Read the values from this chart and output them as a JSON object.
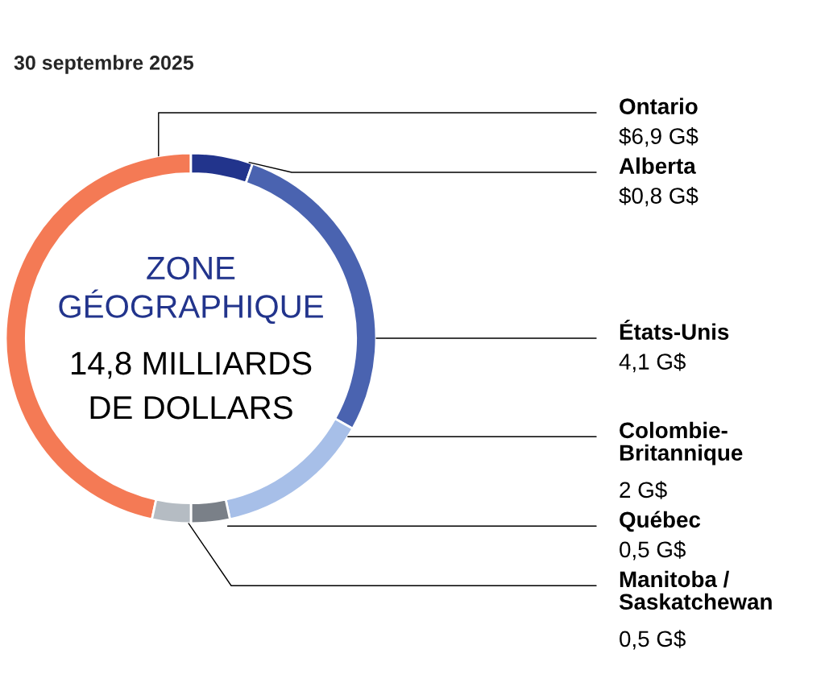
{
  "chart_data": {
    "type": "donut",
    "title": "30 septembre 2025",
    "categories": [
      "Ontario",
      "Alberta",
      "États-Unis",
      "Colombie-\nBritannique",
      "Québec",
      "Manitoba /\nSaskatchewan"
    ],
    "values": [
      6.9,
      0.8,
      4.1,
      2,
      0.5,
      0.5
    ],
    "colors": [
      "#f47a55",
      "#22348c",
      "#4a63b0",
      "#a7bfe8",
      "#7a8088",
      "#b5bcc3"
    ],
    "value_labels": [
      "$6,9 G$",
      "$0,8 G$",
      "4,1 G$",
      "2 G$",
      "0,5 G$",
      "0,5 G$"
    ],
    "annotations": [
      "ZONE\nGÉOGRAPHIQUE",
      "14,8 MILLIARDS\nDE DOLLARS"
    ],
    "legend": false
  }
}
